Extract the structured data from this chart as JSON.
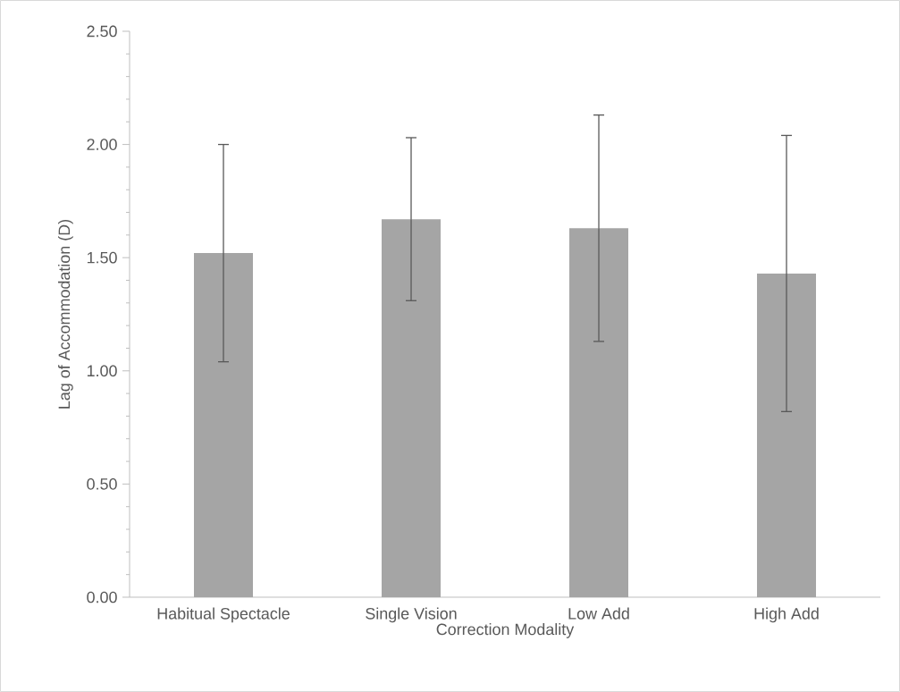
{
  "chart_data": {
    "type": "bar",
    "xlabel": "Correction Modality",
    "ylabel": "Lag of Accommodation (D)",
    "categories": [
      "Habitual Spectacle",
      "Single Vision",
      "Low Add",
      "High Add"
    ],
    "values": [
      1.52,
      1.67,
      1.63,
      1.43
    ],
    "errors": [
      0.48,
      0.36,
      0.5,
      0.61
    ],
    "color": "#a5a5a5",
    "ylim": [
      0,
      2.5
    ],
    "yticks": [
      {
        "value": 0,
        "label": "0.00"
      },
      {
        "value": 0.1,
        "label": null
      },
      {
        "value": 0.2,
        "label": null
      },
      {
        "value": 0.3,
        "label": null
      },
      {
        "value": 0.4,
        "label": null
      },
      {
        "value": 0.5,
        "label": "0.50"
      },
      {
        "value": 0.6,
        "label": null
      },
      {
        "value": 0.7,
        "label": null
      },
      {
        "value": 0.8,
        "label": null
      },
      {
        "value": 0.9,
        "label": null
      },
      {
        "value": 1,
        "label": "1.00"
      },
      {
        "value": 1.1,
        "label": null
      },
      {
        "value": 1.2,
        "label": null
      },
      {
        "value": 1.3,
        "label": null
      },
      {
        "value": 1.4,
        "label": null
      },
      {
        "value": 1.5,
        "label": "1.50"
      },
      {
        "value": 1.6,
        "label": null
      },
      {
        "value": 1.7,
        "label": null
      },
      {
        "value": 1.8,
        "label": null
      },
      {
        "value": 1.9,
        "label": null
      },
      {
        "value": 2,
        "label": "2.00"
      },
      {
        "value": 2.1,
        "label": null
      },
      {
        "value": 2.2,
        "label": null
      },
      {
        "value": 2.3,
        "label": null
      },
      {
        "value": 2.4,
        "label": null
      },
      {
        "value": 2.5,
        "label": "2.50"
      }
    ],
    "grid": false
  }
}
